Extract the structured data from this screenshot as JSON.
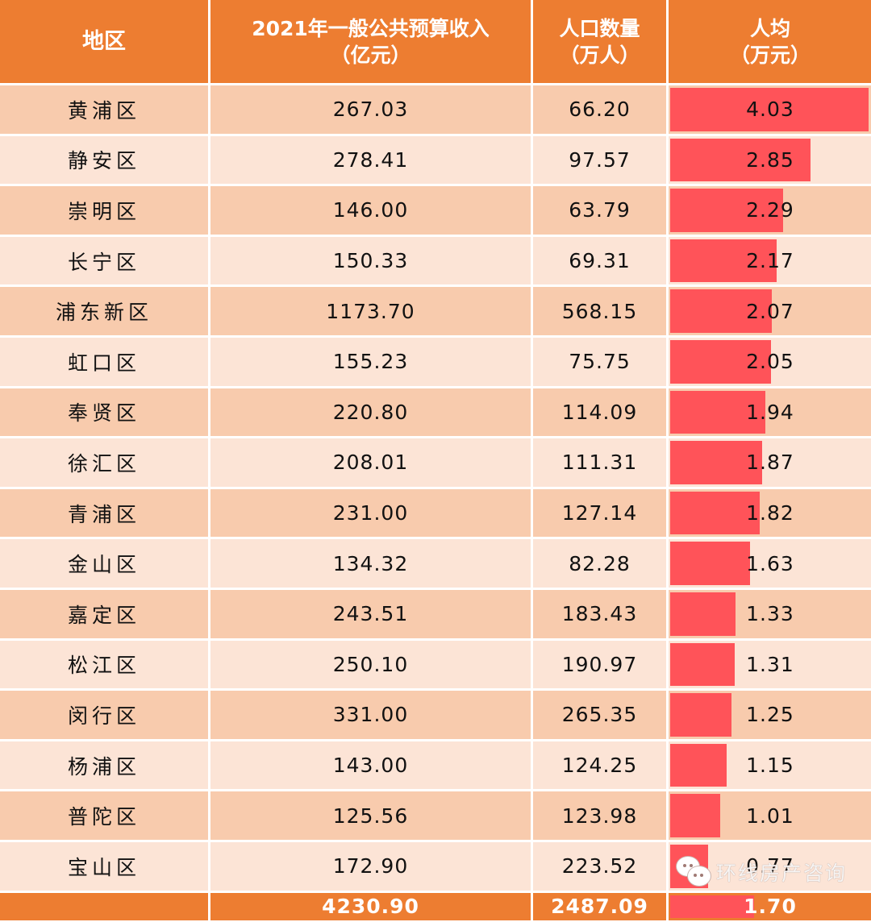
{
  "header": {
    "region": "地区",
    "revenue_line1": "2021年一般公共预算收入",
    "revenue_line2": "（亿元）",
    "population_line1": "人口数量",
    "population_line2": "（万人）",
    "per_capita_line1": "人均",
    "per_capita_line2": "（万元）"
  },
  "rows": [
    {
      "region": "黄浦区",
      "revenue": "267.03",
      "population": "66.20",
      "per_capita": "4.03"
    },
    {
      "region": "静安区",
      "revenue": "278.41",
      "population": "97.57",
      "per_capita": "2.85"
    },
    {
      "region": "崇明区",
      "revenue": "146.00",
      "population": "63.79",
      "per_capita": "2.29"
    },
    {
      "region": "长宁区",
      "revenue": "150.33",
      "population": "69.31",
      "per_capita": "2.17"
    },
    {
      "region": "浦东新区",
      "revenue": "1173.70",
      "population": "568.15",
      "per_capita": "2.07"
    },
    {
      "region": "虹口区",
      "revenue": "155.23",
      "population": "75.75",
      "per_capita": "2.05"
    },
    {
      "region": "奉贤区",
      "revenue": "220.80",
      "population": "114.09",
      "per_capita": "1.94"
    },
    {
      "region": "徐汇区",
      "revenue": "208.01",
      "population": "111.31",
      "per_capita": "1.87"
    },
    {
      "region": "青浦区",
      "revenue": "231.00",
      "population": "127.14",
      "per_capita": "1.82"
    },
    {
      "region": "金山区",
      "revenue": "134.32",
      "population": "82.28",
      "per_capita": "1.63"
    },
    {
      "region": "嘉定区",
      "revenue": "243.51",
      "population": "183.43",
      "per_capita": "1.33"
    },
    {
      "region": "松江区",
      "revenue": "250.10",
      "population": "190.97",
      "per_capita": "1.31"
    },
    {
      "region": "闵行区",
      "revenue": "331.00",
      "population": "265.35",
      "per_capita": "1.25"
    },
    {
      "region": "杨浦区",
      "revenue": "143.00",
      "population": "124.25",
      "per_capita": "1.15"
    },
    {
      "region": "普陀区",
      "revenue": "125.56",
      "population": "123.98",
      "per_capita": "1.01"
    },
    {
      "region": "宝山区",
      "revenue": "172.90",
      "population": "223.52",
      "per_capita": "0.77"
    }
  ],
  "total": {
    "region": "",
    "revenue": "4230.90",
    "population": "2487.09",
    "per_capita": "1.70"
  },
  "watermark": {
    "icon": "wechat-icon",
    "text": "环线房产咨询"
  },
  "colors": {
    "header_bg": "#ed7d31",
    "row_odd_bg": "#f8cbad",
    "row_even_bg": "#fce4d6",
    "data_bar": "#ff5359"
  },
  "chart_data": {
    "type": "table",
    "title": "",
    "columns": [
      "地区",
      "2021年一般公共预算收入（亿元）",
      "人口数量（万人）",
      "人均（万元）"
    ],
    "categories": [
      "黄浦区",
      "静安区",
      "崇明区",
      "长宁区",
      "浦东新区",
      "虹口区",
      "奉贤区",
      "徐汇区",
      "青浦区",
      "金山区",
      "嘉定区",
      "松江区",
      "闵行区",
      "杨浦区",
      "普陀区",
      "宝山区"
    ],
    "series": [
      {
        "name": "2021年一般公共预算收入（亿元）",
        "values": [
          267.03,
          278.41,
          146.0,
          150.33,
          1173.7,
          155.23,
          220.8,
          208.01,
          231.0,
          134.32,
          243.51,
          250.1,
          331.0,
          143.0,
          125.56,
          172.9
        ]
      },
      {
        "name": "人口数量（万人）",
        "values": [
          66.2,
          97.57,
          63.79,
          69.31,
          568.15,
          75.75,
          114.09,
          111.31,
          127.14,
          82.28,
          183.43,
          190.97,
          265.35,
          124.25,
          123.98,
          223.52
        ]
      },
      {
        "name": "人均（万元）",
        "values": [
          4.03,
          2.85,
          2.29,
          2.17,
          2.07,
          2.05,
          1.94,
          1.87,
          1.82,
          1.63,
          1.33,
          1.31,
          1.25,
          1.15,
          1.01,
          0.77
        ],
        "display": "data_bar"
      }
    ],
    "totals": {
      "revenue": 4230.9,
      "population": 2487.09,
      "per_capita": 1.7
    },
    "data_bar_range": [
      0,
      4.03
    ]
  }
}
